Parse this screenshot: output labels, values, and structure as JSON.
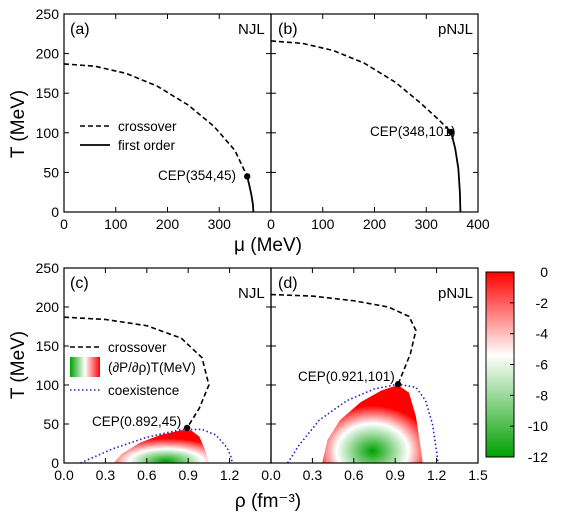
{
  "chart_data": [
    {
      "panel": "(a)",
      "model": "NJL",
      "type": "line",
      "xlim": [
        0,
        400
      ],
      "ylim": [
        0,
        250
      ],
      "xticks": [
        0,
        100,
        200,
        300,
        400
      ],
      "yticks": [
        0,
        50,
        100,
        150,
        200,
        250
      ],
      "series": [
        {
          "name": "crossover",
          "style": "dashed",
          "x": [
            0,
            60,
            120,
            180,
            240,
            290,
            330,
            354
          ],
          "y": [
            187,
            184,
            175,
            159,
            135,
            108,
            78,
            45
          ]
        },
        {
          "name": "first order",
          "style": "solid",
          "x": [
            354,
            358,
            362,
            365,
            366
          ],
          "y": [
            45,
            34,
            22,
            10,
            0
          ]
        }
      ],
      "cep": {
        "label": "CEP(354,45)",
        "x": 354,
        "y": 45
      }
    },
    {
      "panel": "(b)",
      "model": "pNJL",
      "type": "line",
      "xlim": [
        0,
        400
      ],
      "ylim": [
        0,
        250
      ],
      "xticks": [
        0,
        100,
        200,
        300,
        400
      ],
      "yticks": [
        0,
        50,
        100,
        150,
        200,
        250
      ],
      "series": [
        {
          "style": "dashed",
          "x": [
            0,
            60,
            120,
            180,
            240,
            290,
            320,
            348
          ],
          "y": [
            216,
            213,
            204,
            188,
            164,
            137,
            119,
            101
          ]
        },
        {
          "style": "solid",
          "x": [
            348,
            356,
            362,
            365,
            366
          ],
          "y": [
            101,
            80,
            55,
            25,
            0
          ]
        }
      ],
      "cep": {
        "label": "CEP(348,101)",
        "x": 348,
        "y": 101
      }
    },
    {
      "panel": "(c)",
      "model": "NJL",
      "type": "line",
      "xlim": [
        0,
        1.5
      ],
      "ylim": [
        0,
        250
      ],
      "xticks": [
        0.0,
        0.3,
        0.6,
        0.9,
        1.2,
        1.5
      ],
      "yticks": [
        0,
        50,
        100,
        150,
        200,
        250
      ],
      "series": [
        {
          "name": "crossover",
          "style": "dashed",
          "x": [
            0.0,
            0.3,
            0.6,
            0.85,
            1.0,
            1.05,
            0.98,
            0.892
          ],
          "y": [
            187,
            184,
            176,
            160,
            135,
            100,
            70,
            45
          ]
        },
        {
          "name": "coexistence",
          "style": "dotted",
          "x": [
            0.12,
            0.35,
            0.6,
            0.85,
            1.0,
            1.1,
            1.18,
            1.21,
            1.22
          ],
          "y": [
            0,
            18,
            33,
            43,
            43,
            36,
            20,
            8,
            0
          ]
        }
      ],
      "region": {
        "name": "(∂P/∂ρ)T(MeV)",
        "x": [
          0.36,
          0.42,
          0.55,
          0.7,
          0.85,
          0.92,
          0.98,
          1.02,
          1.05
        ],
        "y_top": [
          0,
          12,
          26,
          36,
          42,
          42,
          34,
          18,
          0
        ],
        "range": [
          -12,
          0
        ]
      },
      "cep": {
        "label": "CEP(0.892,45)",
        "x": 0.892,
        "y": 45
      }
    },
    {
      "panel": "(d)",
      "model": "pNJL",
      "type": "line",
      "xlim": [
        0,
        1.5
      ],
      "ylim": [
        0,
        250
      ],
      "xticks": [
        0.0,
        0.3,
        0.6,
        0.9,
        1.2,
        1.5
      ],
      "yticks": [
        0,
        50,
        100,
        150,
        200,
        250
      ],
      "series": [
        {
          "style": "dashed",
          "x": [
            0.0,
            0.3,
            0.6,
            0.85,
            1.0,
            1.05,
            1.01,
            0.921
          ],
          "y": [
            216,
            214,
            208,
            200,
            188,
            170,
            140,
            101
          ]
        },
        {
          "style": "dotted",
          "x": [
            0.12,
            0.2,
            0.35,
            0.55,
            0.75,
            0.92,
            1.05,
            1.12,
            1.17,
            1.2,
            1.21
          ],
          "y": [
            0,
            22,
            55,
            80,
            95,
            101,
            97,
            80,
            50,
            15,
            0
          ]
        }
      ],
      "region": {
        "x": [
          0.37,
          0.41,
          0.5,
          0.65,
          0.8,
          0.921,
          1.0,
          1.05,
          1.08,
          1.1
        ],
        "y_top": [
          0,
          30,
          55,
          78,
          93,
          100,
          90,
          60,
          25,
          0
        ],
        "range": [
          -12,
          0
        ]
      },
      "cep": {
        "label": "CEP(0.921,101)",
        "x": 0.921,
        "y": 101
      }
    }
  ],
  "labels": {
    "ylabel": "T (MeV)",
    "xlabel_top": "μ (MeV)",
    "xlabel_bottom": "ρ (fm⁻³)",
    "legend_crossover": "crossover",
    "legend_first_order": "first order",
    "legend_region": "(∂P/∂ρ)T(MeV)",
    "legend_coexistence": "coexistence"
  },
  "colorbar": {
    "ticks": [
      "0",
      "-2",
      "-4",
      "-6",
      "-8",
      "-10",
      "-12"
    ],
    "colors": {
      "top": "#ff0000",
      "middle": "#ffffff",
      "bottom": "#00a000"
    }
  },
  "colors": {
    "coexistence": "#2020c0",
    "line": "#000000"
  }
}
